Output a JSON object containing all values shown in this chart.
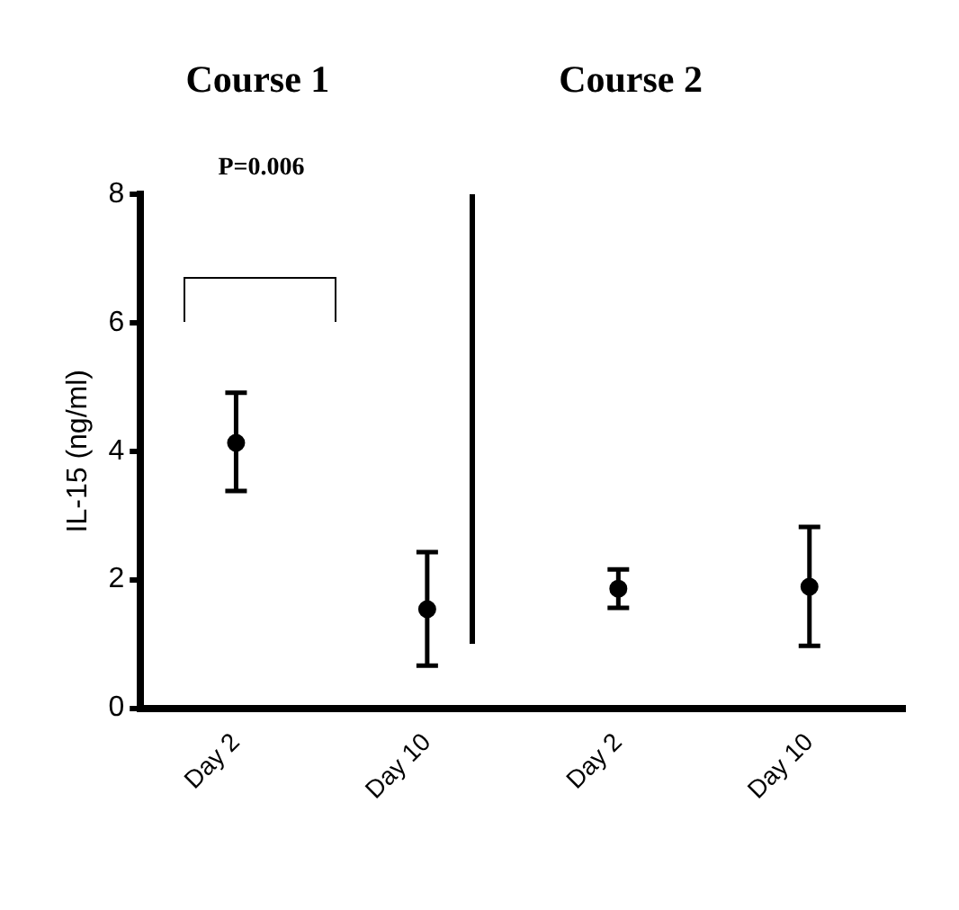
{
  "chart_data": {
    "type": "scatter",
    "ylabel": "IL-15 (ng/ml)",
    "categories": [
      "Day 2",
      "Day 10",
      "Day 2",
      "Day 10"
    ],
    "values": [
      4.13,
      1.54,
      1.86,
      1.89
    ],
    "errors": [
      [
        3.38,
        4.91
      ],
      [
        0.66,
        2.43
      ],
      [
        1.56,
        2.16
      ],
      [
        0.97,
        2.82
      ]
    ],
    "color": "#000000",
    "marker": "circle",
    "grid": false,
    "legend": false,
    "ylim": [
      0,
      8
    ],
    "yticks": [
      0,
      2,
      4,
      6,
      8
    ],
    "annotations": [
      "Course 1",
      "Course 2",
      "P=0.006"
    ]
  }
}
